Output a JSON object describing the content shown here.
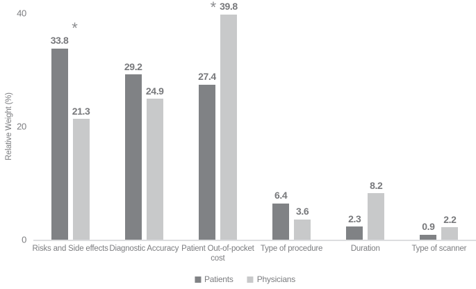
{
  "chart_data": {
    "type": "bar",
    "ylabel": "Relative Weight (%)",
    "xlabel": "",
    "ylim": [
      0,
      40
    ],
    "yticks": [
      0,
      20,
      40
    ],
    "grid": false,
    "legend_position": "bottom-center",
    "categories": [
      "Risks and Side effects",
      "Diagnostic Accuracy",
      "Patient Out-of-pocket cost",
      "Type of procedure",
      "Duration",
      "Type of scanner"
    ],
    "series": [
      {
        "name": "Patients",
        "color": "#808285",
        "values": [
          33.8,
          29.2,
          27.4,
          6.4,
          2.3,
          0.9
        ]
      },
      {
        "name": "Physicians",
        "color": "#c8c9ca",
        "values": [
          21.3,
          24.9,
          39.8,
          3.6,
          8.2,
          2.2
        ]
      }
    ],
    "significance_marker": "*",
    "significant_categories": [
      "Risks and Side effects",
      "Patient Out-of-pocket cost"
    ]
  },
  "colors": {
    "background": "#ffffff",
    "text": "#7b7c7f",
    "baseline": "#dcdddf"
  }
}
